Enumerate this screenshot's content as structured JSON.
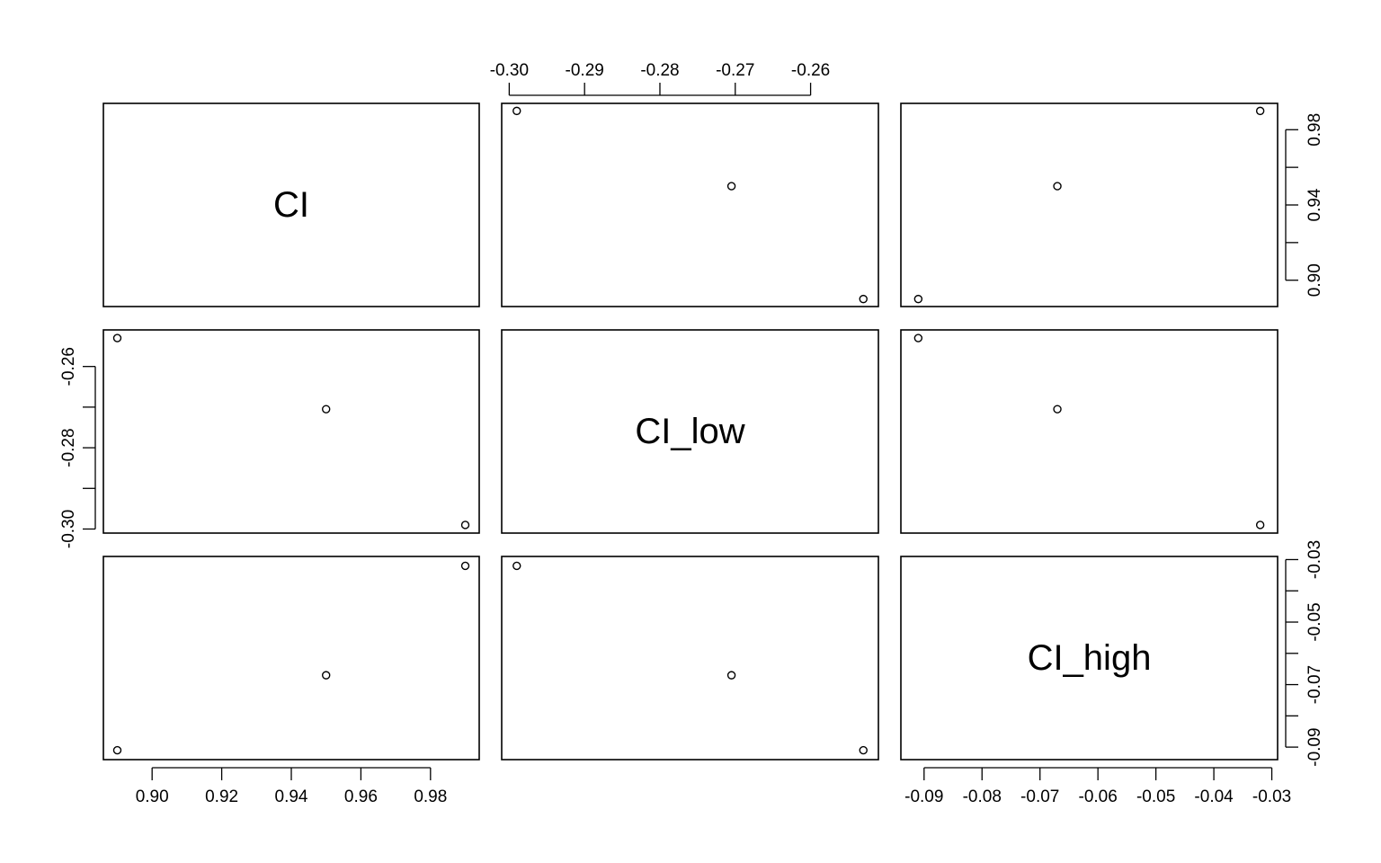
{
  "chart_data": {
    "type": "scatter",
    "variables": [
      "CI",
      "CI_low",
      "CI_high"
    ],
    "data": {
      "CI": [
        0.89,
        0.95,
        0.99
      ],
      "CI_low": [
        -0.253,
        -0.2705,
        -0.299
      ],
      "CI_high": [
        -0.091,
        -0.067,
        -0.032
      ]
    },
    "ranges": {
      "CI": [
        0.886,
        0.994
      ],
      "CI_low": [
        -0.301,
        -0.251
      ],
      "CI_high": [
        -0.094,
        -0.029
      ]
    },
    "axes": {
      "top_CI_low": {
        "ticks": [
          -0.3,
          -0.29,
          -0.28,
          -0.27,
          -0.26
        ],
        "labels": [
          "-0.30",
          "-0.29",
          "-0.28",
          "-0.27",
          "-0.26"
        ]
      },
      "right_CI": {
        "ticks": [
          0.9,
          0.92,
          0.94,
          0.96,
          0.98
        ],
        "labels": [
          "0.90",
          "",
          "0.94",
          "",
          "0.98"
        ]
      },
      "left_CI_low": {
        "ticks": [
          -0.3,
          -0.29,
          -0.28,
          -0.27,
          -0.26
        ],
        "labels": [
          "-0.30",
          "",
          "-0.28",
          "",
          "-0.26"
        ]
      },
      "right_CI_high": {
        "ticks": [
          -0.09,
          -0.08,
          -0.07,
          -0.06,
          -0.05,
          -0.04,
          -0.03
        ],
        "labels": [
          "-0.09",
          "",
          "-0.07",
          "",
          "-0.05",
          "",
          "-0.03"
        ]
      },
      "bottom_CI": {
        "ticks": [
          0.9,
          0.92,
          0.94,
          0.96,
          0.98
        ],
        "labels": [
          "0.90",
          "0.92",
          "0.94",
          "0.96",
          "0.98"
        ]
      },
      "bottom_CI_high": {
        "ticks": [
          -0.09,
          -0.08,
          -0.07,
          -0.06,
          -0.05,
          -0.04,
          -0.03
        ],
        "labels": [
          "-0.09",
          "-0.08",
          "-0.07",
          "-0.06",
          "-0.05",
          "-0.04",
          "-0.03"
        ]
      }
    },
    "grid": false,
    "title": "",
    "xlabel": "",
    "ylabel": ""
  }
}
